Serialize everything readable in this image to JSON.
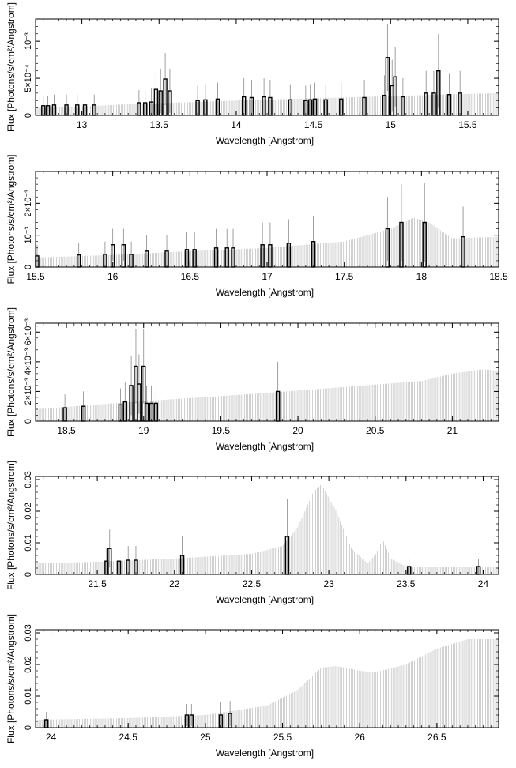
{
  "chart_data": [
    {
      "type": "bar",
      "xlabel": "Wavelength [Angstrom]",
      "ylabel": "Flux [Photons/s/cm²/Angstrom]",
      "xlim": [
        12.7,
        15.7
      ],
      "ylim": [
        0,
        0.0013
      ],
      "xticks": [
        {
          "v": 13,
          "label": "13"
        },
        {
          "v": 13.5,
          "label": "13.5"
        },
        {
          "v": 14,
          "label": "14"
        },
        {
          "v": 14.5,
          "label": "14.5"
        },
        {
          "v": 15,
          "label": "15"
        },
        {
          "v": 15.5,
          "label": "15.5"
        }
      ],
      "yticks": [
        {
          "v": 0,
          "label": "0"
        },
        {
          "v": 0.0005,
          "label": "5×10⁻⁴"
        },
        {
          "v": 0.001,
          "label": "10⁻³"
        }
      ],
      "series": [
        {
          "role": "model",
          "color": "#bdbdbd",
          "x": [
            12.7,
            13.0,
            13.3,
            13.6,
            14.0,
            14.5,
            15.0,
            15.5,
            15.7
          ],
          "values": [
            0.0001,
            0.00012,
            0.00015,
            0.00017,
            0.0002,
            0.00023,
            0.00026,
            0.00029,
            0.0003
          ]
        },
        {
          "role": "observed",
          "color": "#000000",
          "x": [
            12.75,
            12.78,
            12.82,
            12.9,
            12.97,
            13.02,
            13.08,
            13.37,
            13.41,
            13.45,
            13.48,
            13.51,
            13.54,
            13.57,
            13.75,
            13.8,
            13.88,
            14.05,
            14.1,
            14.18,
            14.22,
            14.35,
            14.45,
            14.48,
            14.51,
            14.58,
            14.68,
            14.83,
            14.96,
            14.98,
            15.01,
            15.03,
            15.08,
            15.23,
            15.28,
            15.31,
            15.38,
            15.45
          ],
          "values": [
            0.00013,
            0.00013,
            0.00014,
            0.00014,
            0.00014,
            0.00014,
            0.00014,
            0.00017,
            0.00017,
            0.00018,
            0.00035,
            0.00033,
            0.00049,
            0.00033,
            0.0002,
            0.00021,
            0.00022,
            0.00025,
            0.00024,
            0.00025,
            0.00024,
            0.00021,
            0.0002,
            0.00021,
            0.00022,
            0.00021,
            0.00022,
            0.00024,
            0.00027,
            0.00078,
            0.0004,
            0.00052,
            0.00025,
            0.0003,
            0.0003,
            0.0006,
            0.00028,
            0.0003
          ],
          "errors": [
            0.00013,
            0.00013,
            0.00014,
            0.00014,
            0.00014,
            0.00014,
            0.00014,
            0.00017,
            0.00017,
            0.00018,
            0.00025,
            0.0003,
            0.00035,
            0.0003,
            0.0002,
            0.00021,
            0.00022,
            0.00025,
            0.00024,
            0.00025,
            0.00024,
            0.00021,
            0.0002,
            0.00021,
            0.00022,
            0.00021,
            0.00022,
            0.00024,
            0.00027,
            0.00045,
            0.00035,
            0.0004,
            0.00025,
            0.0003,
            0.0003,
            0.0005,
            0.00028,
            0.0003
          ]
        }
      ]
    },
    {
      "type": "bar",
      "xlabel": "Wavelength [Angstrom]",
      "ylabel": "Flux [Photons/s/cm²/Angstrom]",
      "xlim": [
        15.5,
        18.5
      ],
      "ylim": [
        0,
        0.003
      ],
      "xticks": [
        {
          "v": 15.5,
          "label": "15.5"
        },
        {
          "v": 16,
          "label": "16"
        },
        {
          "v": 16.5,
          "label": "16.5"
        },
        {
          "v": 17,
          "label": "17"
        },
        {
          "v": 17.5,
          "label": "17.5"
        },
        {
          "v": 18,
          "label": "18"
        },
        {
          "v": 18.5,
          "label": "18.5"
        }
      ],
      "yticks": [
        {
          "v": 0,
          "label": "0"
        },
        {
          "v": 0.001,
          "label": "10⁻³"
        },
        {
          "v": 0.002,
          "label": "2×10⁻³"
        }
      ],
      "series": [
        {
          "role": "model",
          "color": "#bdbdbd",
          "x": [
            15.5,
            16.0,
            16.5,
            17.0,
            17.5,
            17.8,
            17.95,
            18.05,
            18.2,
            18.5
          ],
          "values": [
            0.0003,
            0.00038,
            0.0005,
            0.0006,
            0.0008,
            0.0012,
            0.00155,
            0.0014,
            0.0009,
            0.00095
          ]
        },
        {
          "role": "observed",
          "color": "#000000",
          "x": [
            15.51,
            15.78,
            15.95,
            16.0,
            16.07,
            16.12,
            16.22,
            16.35,
            16.48,
            16.53,
            16.67,
            16.74,
            16.78,
            16.97,
            17.02,
            17.14,
            17.3,
            17.78,
            17.87,
            18.02,
            18.27
          ],
          "values": [
            0.00035,
            0.00038,
            0.0004,
            0.0007,
            0.0007,
            0.0004,
            0.0005,
            0.0005,
            0.00055,
            0.00055,
            0.0006,
            0.0006,
            0.0006,
            0.0007,
            0.0007,
            0.00075,
            0.0008,
            0.0012,
            0.0014,
            0.0014,
            0.00095
          ],
          "errors": [
            0.00035,
            0.00038,
            0.0004,
            0.0005,
            0.0005,
            0.0004,
            0.0005,
            0.0005,
            0.00055,
            0.00055,
            0.0006,
            0.0006,
            0.0006,
            0.0007,
            0.0007,
            0.00075,
            0.0008,
            0.001,
            0.0012,
            0.00125,
            0.00095
          ]
        }
      ]
    },
    {
      "type": "bar",
      "xlabel": "Wavelength [Angstrom]",
      "ylabel": "Flux [Photons/s/cm²/Angstrom]",
      "xlim": [
        18.3,
        21.3
      ],
      "ylim": [
        0,
        0.0066
      ],
      "xticks": [
        {
          "v": 18.5,
          "label": "18.5"
        },
        {
          "v": 19,
          "label": "19"
        },
        {
          "v": 19.5,
          "label": "19.5"
        },
        {
          "v": 20,
          "label": "20"
        },
        {
          "v": 20.5,
          "label": "20.5"
        },
        {
          "v": 21,
          "label": "21"
        }
      ],
      "yticks": [
        {
          "v": 0,
          "label": "0"
        },
        {
          "v": 0.002,
          "label": "2×10⁻³"
        },
        {
          "v": 0.004,
          "label": "4×10⁻³"
        },
        {
          "v": 0.006,
          "label": "6×10⁻³"
        }
      ],
      "series": [
        {
          "role": "model",
          "color": "#bdbdbd",
          "x": [
            18.3,
            18.8,
            19.3,
            19.8,
            20.3,
            20.8,
            21.0,
            21.2,
            21.3
          ],
          "values": [
            0.0008,
            0.0012,
            0.00155,
            0.0019,
            0.0023,
            0.0027,
            0.0032,
            0.0035,
            0.0034
          ]
        },
        {
          "role": "observed",
          "color": "#000000",
          "x": [
            18.49,
            18.61,
            18.85,
            18.88,
            18.92,
            18.95,
            18.97,
            19.0,
            19.02,
            19.05,
            19.08,
            19.87
          ],
          "values": [
            0.0009,
            0.001,
            0.0011,
            0.0013,
            0.0024,
            0.0037,
            0.0025,
            0.0037,
            0.0012,
            0.0012,
            0.0012,
            0.002
          ],
          "errors": [
            0.0009,
            0.001,
            0.0011,
            0.0013,
            0.002,
            0.0025,
            0.002,
            0.0025,
            0.0012,
            0.0012,
            0.0012,
            0.002
          ]
        }
      ]
    },
    {
      "type": "bar",
      "xlabel": "Wavelength [Angstrom]",
      "ylabel": "Flux [Photons/s/cm²/Angstrom]",
      "xlim": [
        21.1,
        24.1
      ],
      "ylim": [
        0,
        0.031
      ],
      "xticks": [
        {
          "v": 21.5,
          "label": "21.5"
        },
        {
          "v": 22,
          "label": "22"
        },
        {
          "v": 22.5,
          "label": "22.5"
        },
        {
          "v": 23,
          "label": "23"
        },
        {
          "v": 23.5,
          "label": "23.5"
        },
        {
          "v": 24,
          "label": "24"
        }
      ],
      "yticks": [
        {
          "v": 0,
          "label": "0"
        },
        {
          "v": 0.01,
          "label": "0.01"
        },
        {
          "v": 0.02,
          "label": "0.02"
        },
        {
          "v": 0.03,
          "label": "0.03"
        }
      ],
      "series": [
        {
          "role": "model",
          "color": "#bdbdbd",
          "x": [
            21.1,
            21.5,
            22.0,
            22.5,
            22.7,
            22.8,
            22.9,
            22.95,
            23.05,
            23.15,
            23.25,
            23.3,
            23.35,
            23.4,
            23.5,
            24.0,
            24.1
          ],
          "values": [
            0.0035,
            0.004,
            0.005,
            0.0065,
            0.009,
            0.015,
            0.026,
            0.0285,
            0.02,
            0.008,
            0.0035,
            0.006,
            0.011,
            0.005,
            0.0025,
            0.0025,
            0.0025
          ]
        },
        {
          "role": "observed",
          "color": "#000000",
          "x": [
            21.56,
            21.58,
            21.64,
            21.7,
            21.75,
            22.05,
            22.73,
            23.52,
            23.97
          ],
          "values": [
            0.0042,
            0.0082,
            0.0042,
            0.0045,
            0.0045,
            0.006,
            0.012,
            0.0025,
            0.0025
          ],
          "errors": [
            0.004,
            0.006,
            0.004,
            0.0045,
            0.0045,
            0.006,
            0.012,
            0.0025,
            0.0025
          ]
        }
      ]
    },
    {
      "type": "bar",
      "xlabel": "Wavelength [Angstrom]",
      "ylabel": "Flux [Photons/s/cm²/Angstrom]",
      "xlim": [
        23.9,
        26.9
      ],
      "ylim": [
        0,
        0.031
      ],
      "xticks": [
        {
          "v": 24,
          "label": "24"
        },
        {
          "v": 24.5,
          "label": "24.5"
        },
        {
          "v": 25,
          "label": "25"
        },
        {
          "v": 25.5,
          "label": "25.5"
        },
        {
          "v": 26,
          "label": "26"
        },
        {
          "v": 26.5,
          "label": "26.5"
        }
      ],
      "yticks": [
        {
          "v": 0,
          "label": "0"
        },
        {
          "v": 0.01,
          "label": "0.01"
        },
        {
          "v": 0.02,
          "label": "0.02"
        },
        {
          "v": 0.03,
          "label": "0.03"
        }
      ],
      "series": [
        {
          "role": "model",
          "color": "#bdbdbd",
          "x": [
            23.9,
            24.5,
            25.0,
            25.4,
            25.6,
            25.75,
            25.85,
            26.0,
            26.1,
            26.3,
            26.5,
            26.7,
            26.9
          ],
          "values": [
            0.0025,
            0.003,
            0.004,
            0.007,
            0.012,
            0.019,
            0.0195,
            0.018,
            0.0175,
            0.02,
            0.025,
            0.028,
            0.028
          ]
        },
        {
          "role": "observed",
          "color": "#000000",
          "x": [
            23.97,
            24.88,
            24.91,
            25.1,
            25.16
          ],
          "values": [
            0.0025,
            0.004,
            0.004,
            0.004,
            0.0045
          ],
          "errors": [
            0.0025,
            0.0035,
            0.0035,
            0.004,
            0.004
          ]
        }
      ]
    }
  ]
}
